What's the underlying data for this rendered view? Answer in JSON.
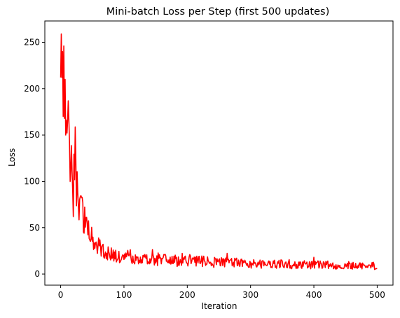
{
  "chart_data": {
    "type": "line",
    "title": "Mini-batch Loss per Step (first 500 updates)",
    "xlabel": "Iteration",
    "ylabel": "Loss",
    "xlim": [
      -25,
      525
    ],
    "ylim": [
      -12,
      273
    ],
    "xticks": [
      0,
      100,
      200,
      300,
      400,
      500
    ],
    "yticks": [
      0,
      50,
      100,
      150,
      200,
      250
    ],
    "grid": false,
    "series": [
      {
        "color": "#ff0000",
        "trend": {
          "x": [
            0,
            2,
            4,
            6,
            8,
            10,
            13,
            16,
            20,
            24,
            28,
            32,
            36,
            40,
            45,
            50,
            55,
            60,
            70,
            80,
            90,
            100,
            120,
            140,
            160,
            180,
            200,
            220,
            240,
            260,
            280,
            300,
            320,
            340,
            360,
            380,
            400,
            420,
            440,
            460,
            480,
            500
          ],
          "y": [
            235,
            230,
            222,
            205,
            185,
            165,
            145,
            128,
            112,
            97,
            84,
            72,
            62,
            54,
            45,
            38,
            33,
            29,
            24,
            21,
            19,
            18,
            16.5,
            15.5,
            15,
            14.5,
            14,
            13.5,
            13,
            12.5,
            12,
            11.5,
            11,
            10.8,
            10.5,
            10.2,
            10,
            9.8,
            9.5,
            9.2,
            9,
            8.8
          ]
        },
        "anchors": {
          "x": [
            0,
            1,
            2,
            3,
            4,
            5,
            6,
            7,
            8,
            9,
            10,
            20,
            500
          ],
          "y": [
            212,
            259,
            212,
            240,
            170,
            246,
            168,
            210,
            150,
            166,
            152,
            62,
            6
          ]
        }
      }
    ]
  }
}
